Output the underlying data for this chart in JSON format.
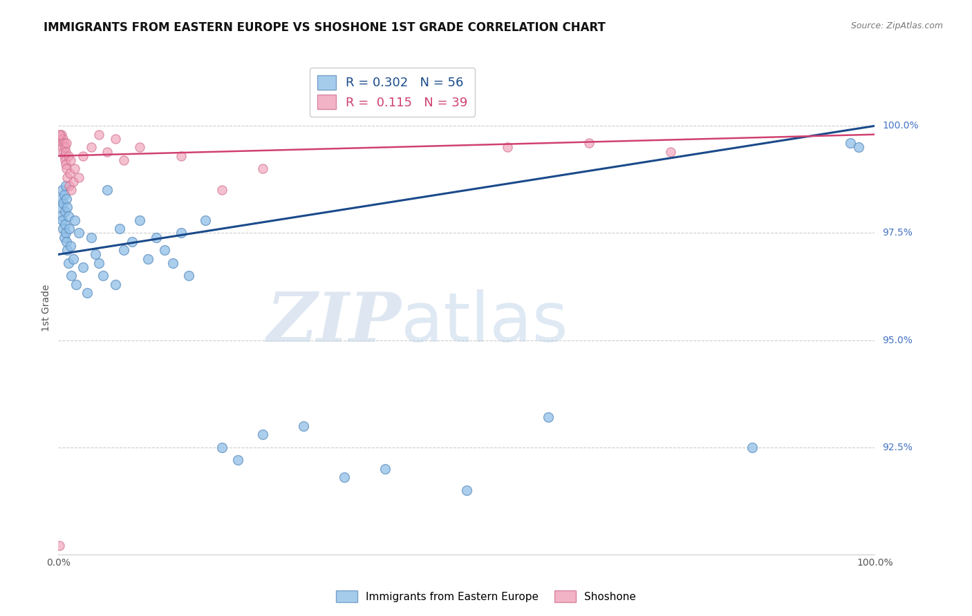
{
  "title": "IMMIGRANTS FROM EASTERN EUROPE VS SHOSHONE 1ST GRADE CORRELATION CHART",
  "source": "Source: ZipAtlas.com",
  "ylabel": "1st Grade",
  "yticks": [
    90.0,
    92.5,
    95.0,
    97.5,
    100.0
  ],
  "ytick_labels": [
    "",
    "92.5%",
    "95.0%",
    "97.5%",
    "100.0%"
  ],
  "xmin": 0.0,
  "xmax": 100.0,
  "ymin": 90.0,
  "ymax": 101.5,
  "blue_R": 0.302,
  "blue_N": 56,
  "pink_R": 0.115,
  "pink_N": 39,
  "blue_color": "#90c0e8",
  "pink_color": "#f0a0b8",
  "blue_edge_color": "#6090c0",
  "pink_edge_color": "#d07090",
  "blue_line_color": "#1a4a8a",
  "pink_line_color": "#d04070",
  "legend_label_blue": "Immigrants from Eastern Europe",
  "legend_label_pink": "Shoshone",
  "watermark_zip": "ZIP",
  "watermark_atlas": "atlas",
  "blue_points_x": [
    0.2,
    0.3,
    0.4,
    0.5,
    0.5,
    0.6,
    0.6,
    0.7,
    0.7,
    0.8,
    0.8,
    0.9,
    0.9,
    1.0,
    1.0,
    1.1,
    1.1,
    1.2,
    1.2,
    1.3,
    1.5,
    1.6,
    1.8,
    2.0,
    2.2,
    2.5,
    3.0,
    3.5,
    4.0,
    4.5,
    5.0,
    5.5,
    6.0,
    7.0,
    7.5,
    8.0,
    9.0,
    10.0,
    11.0,
    12.0,
    13.0,
    14.0,
    15.0,
    16.0,
    18.0,
    20.0,
    22.0,
    25.0,
    30.0,
    35.0,
    40.0,
    50.0,
    60.0,
    85.0,
    97.0,
    98.0
  ],
  "blue_points_y": [
    98.3,
    98.1,
    97.9,
    98.5,
    97.8,
    98.2,
    97.6,
    98.4,
    97.4,
    98.0,
    97.7,
    98.6,
    97.5,
    98.3,
    97.3,
    98.1,
    97.1,
    97.9,
    96.8,
    97.6,
    97.2,
    96.5,
    96.9,
    97.8,
    96.3,
    97.5,
    96.7,
    96.1,
    97.4,
    97.0,
    96.8,
    96.5,
    98.5,
    96.3,
    97.6,
    97.1,
    97.3,
    97.8,
    96.9,
    97.4,
    97.1,
    96.8,
    97.5,
    96.5,
    97.8,
    92.5,
    92.2,
    92.8,
    93.0,
    91.8,
    92.0,
    91.5,
    93.2,
    92.5,
    99.6,
    99.5
  ],
  "pink_points_x": [
    0.1,
    0.2,
    0.3,
    0.4,
    0.5,
    0.5,
    0.6,
    0.6,
    0.7,
    0.7,
    0.8,
    0.8,
    0.9,
    0.9,
    1.0,
    1.0,
    1.1,
    1.2,
    1.3,
    1.4,
    1.5,
    1.6,
    1.8,
    2.0,
    2.5,
    3.0,
    4.0,
    5.0,
    6.0,
    7.0,
    8.0,
    10.0,
    15.0,
    20.0,
    25.0,
    55.0,
    65.0,
    75.0,
    0.15
  ],
  "pink_points_y": [
    90.2,
    99.8,
    99.7,
    99.8,
    99.6,
    99.5,
    99.7,
    99.4,
    99.6,
    99.3,
    99.5,
    99.2,
    99.4,
    99.1,
    99.6,
    99.0,
    98.8,
    99.3,
    98.6,
    98.9,
    99.2,
    98.5,
    98.7,
    99.0,
    98.8,
    99.3,
    99.5,
    99.8,
    99.4,
    99.7,
    99.2,
    99.5,
    99.3,
    98.5,
    99.0,
    99.5,
    99.6,
    99.4,
    99.8
  ],
  "blue_line_x0": 0.0,
  "blue_line_y0": 97.0,
  "blue_line_x1": 100.0,
  "blue_line_y1": 100.0,
  "pink_line_x0": 0.0,
  "pink_line_y0": 99.3,
  "pink_line_x1": 100.0,
  "pink_line_y1": 99.8
}
